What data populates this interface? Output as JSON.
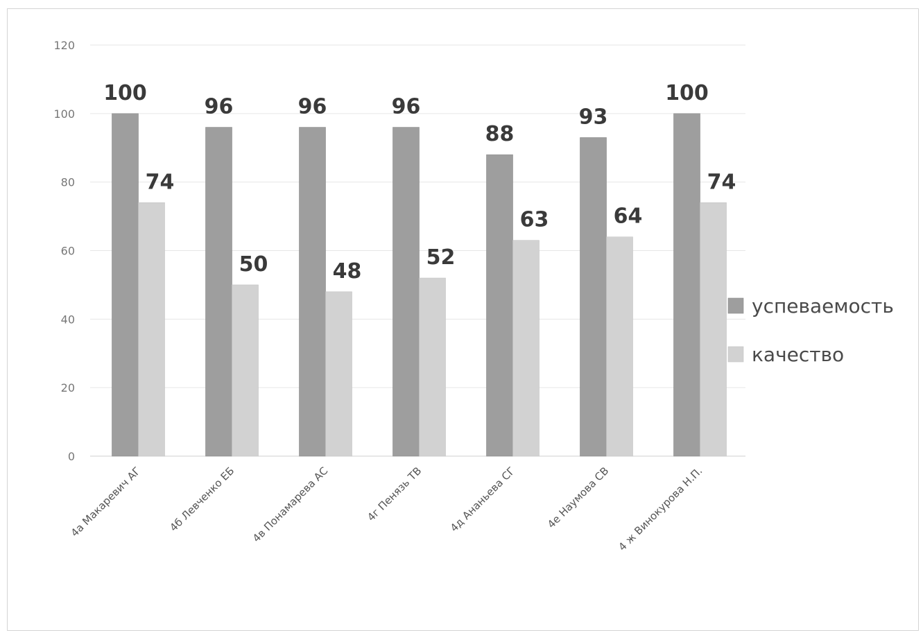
{
  "chart_data": {
    "type": "bar",
    "categories": [
      "4а Макаревич АГ",
      "4б Левченко ЕБ",
      "4в Понамарева АС",
      "4г Пенязь ТВ",
      "4д Ананьева СГ",
      "4е Наумова СВ",
      "4 ж Винокурова Н.П."
    ],
    "series": [
      {
        "name": "успеваемость",
        "values": [
          100,
          96,
          96,
          96,
          88,
          93,
          100
        ],
        "color": "#9e9e9e"
      },
      {
        "name": "качество",
        "values": [
          74,
          50,
          48,
          52,
          63,
          64,
          74
        ],
        "color": "#d2d2d2"
      }
    ],
    "yticks": [
      "0",
      "20",
      "40",
      "60",
      "80",
      "100",
      "120"
    ],
    "ylim": [
      0,
      120
    ],
    "grid": true,
    "legend_position": "right"
  }
}
